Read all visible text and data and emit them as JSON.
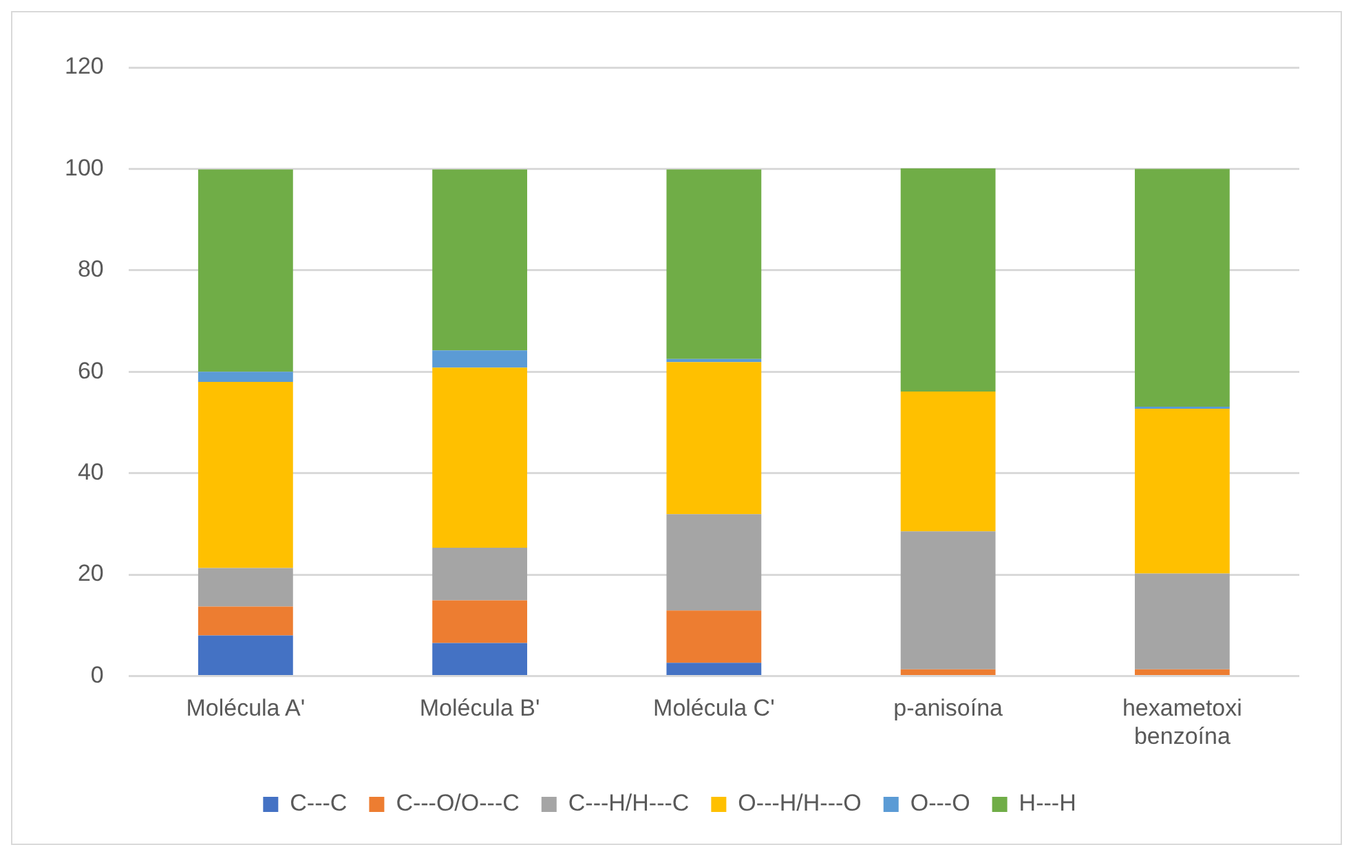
{
  "chart_data": {
    "type": "bar",
    "stacked": true,
    "categories": [
      "Molécula A'",
      "Molécula B'",
      "Molécula C'",
      "p-anisoína",
      "hexametoxi benzoína"
    ],
    "series": [
      {
        "name": "C---C",
        "color": "#4472c4",
        "values": [
          8.0,
          6.5,
          2.6,
          0,
          0
        ]
      },
      {
        "name": "C---O/O---C",
        "color": "#ed7d31",
        "values": [
          5.7,
          8.4,
          10.3,
          1.3,
          1.3
        ]
      },
      {
        "name": "C---H/H---C",
        "color": "#a5a5a5",
        "values": [
          7.6,
          10.4,
          19.0,
          27.2,
          18.9
        ]
      },
      {
        "name": "O---H/H---O",
        "color": "#ffc000",
        "values": [
          36.7,
          35.5,
          30.0,
          27.6,
          32.5
        ]
      },
      {
        "name": "O---O",
        "color": "#5b9bd5",
        "values": [
          2.0,
          3.4,
          0.6,
          0,
          0.4
        ]
      },
      {
        "name": "H---H",
        "color": "#70ad47",
        "values": [
          39.9,
          35.7,
          37.4,
          44.0,
          46.9
        ]
      }
    ],
    "ylim": [
      0,
      120
    ],
    "yticks": [
      0,
      20,
      40,
      60,
      80,
      100,
      120
    ],
    "grid": "y",
    "legend": "bottom"
  }
}
